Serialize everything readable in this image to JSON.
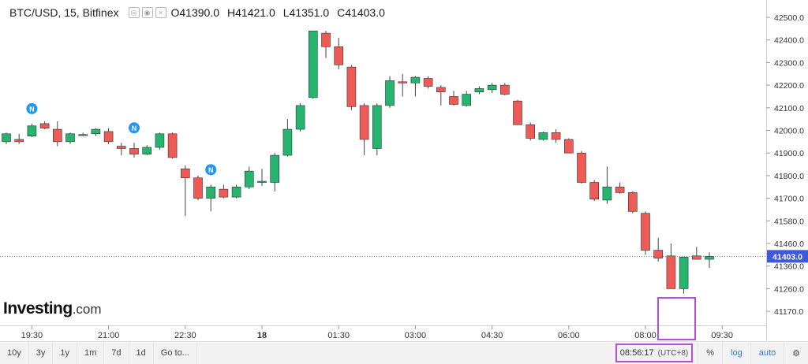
{
  "header": {
    "symbol": "BTC/USD, 15, Bitfinex",
    "ohlc": [
      {
        "k": "O",
        "v": "41390.0"
      },
      {
        "k": "H",
        "v": "41421.0"
      },
      {
        "k": "L",
        "v": "41351.0"
      },
      {
        "k": "C",
        "v": "41403.0"
      }
    ]
  },
  "logo": {
    "main": "Investing",
    "suffix": ".com"
  },
  "toolbar": {
    "ranges": [
      "10y",
      "3y",
      "1y",
      "1m",
      "7d",
      "1d"
    ],
    "goto": "Go to...",
    "clock": "08:56:17",
    "timezone": "(UTC+8)",
    "percent": "%",
    "log": "log",
    "auto": "auto"
  },
  "colors": {
    "up": "#26b56e",
    "down": "#ee5a55",
    "last_price_bg": "#3d5bd9",
    "highlight": "#b44ee0",
    "news_icon": "#2196f3"
  },
  "chart_data": {
    "type": "candlestick",
    "ylim": [
      41100,
      42560
    ],
    "y_ticks": [
      42500,
      42400,
      42300,
      42200,
      42100,
      42000,
      41900,
      41800,
      41700,
      41580,
      41460,
      41360,
      41260,
      41170
    ],
    "y_tick_labels": [
      "42500.0",
      "42400.0",
      "42300.0",
      "42200.0",
      "42100.0",
      "42000.0",
      "41900.0",
      "41800.0",
      "41700.0",
      "41580.0",
      "41460.0",
      "41360.0",
      "41260.0",
      "41170.0"
    ],
    "x_ticks": [
      {
        "i": 2,
        "label": "19:30",
        "bold": false
      },
      {
        "i": 8,
        "label": "21:00",
        "bold": false
      },
      {
        "i": 14,
        "label": "22:30",
        "bold": false
      },
      {
        "i": 20,
        "label": "18",
        "bold": true
      },
      {
        "i": 26,
        "label": "01:30",
        "bold": false
      },
      {
        "i": 32,
        "label": "03:00",
        "bold": false
      },
      {
        "i": 38,
        "label": "04:30",
        "bold": false
      },
      {
        "i": 44,
        "label": "06:00",
        "bold": false
      },
      {
        "i": 50,
        "label": "08:00",
        "bold": false
      },
      {
        "i": 56,
        "label": "09:30",
        "bold": false
      }
    ],
    "last_price": 41403,
    "last_price_label": "41403.0",
    "news_markers": [
      {
        "i": 2,
        "label": "N"
      },
      {
        "i": 10,
        "label": "N"
      },
      {
        "i": 16,
        "label": "N"
      }
    ],
    "candles": [
      {
        "o": 41950,
        "h": 41990,
        "l": 41940,
        "c": 41985
      },
      {
        "o": 41960,
        "h": 41985,
        "l": 41940,
        "c": 41950
      },
      {
        "o": 41975,
        "h": 42030,
        "l": 41970,
        "c": 42020
      },
      {
        "o": 42030,
        "h": 42040,
        "l": 42005,
        "c": 42010
      },
      {
        "o": 42005,
        "h": 42040,
        "l": 41930,
        "c": 41950
      },
      {
        "o": 41950,
        "h": 41990,
        "l": 41940,
        "c": 41985
      },
      {
        "o": 41980,
        "h": 41990,
        "l": 41975,
        "c": 41982
      },
      {
        "o": 41985,
        "h": 42010,
        "l": 41975,
        "c": 42005
      },
      {
        "o": 41995,
        "h": 42010,
        "l": 41940,
        "c": 41950
      },
      {
        "o": 41930,
        "h": 41945,
        "l": 41890,
        "c": 41920
      },
      {
        "o": 41920,
        "h": 41945,
        "l": 41880,
        "c": 41895
      },
      {
        "o": 41895,
        "h": 41935,
        "l": 41890,
        "c": 41925
      },
      {
        "o": 41925,
        "h": 41990,
        "l": 41915,
        "c": 41985
      },
      {
        "o": 41985,
        "h": 41990,
        "l": 41875,
        "c": 41880
      },
      {
        "o": 41830,
        "h": 41845,
        "l": 41605,
        "c": 41790
      },
      {
        "o": 41790,
        "h": 41800,
        "l": 41690,
        "c": 41700
      },
      {
        "o": 41700,
        "h": 41760,
        "l": 41630,
        "c": 41750
      },
      {
        "o": 41740,
        "h": 41760,
        "l": 41700,
        "c": 41705
      },
      {
        "o": 41705,
        "h": 41760,
        "l": 41700,
        "c": 41750
      },
      {
        "o": 41750,
        "h": 41840,
        "l": 41740,
        "c": 41820
      },
      {
        "o": 41770,
        "h": 41830,
        "l": 41755,
        "c": 41775
      },
      {
        "o": 41770,
        "h": 41900,
        "l": 41730,
        "c": 41890
      },
      {
        "o": 41890,
        "h": 42050,
        "l": 41885,
        "c": 42005
      },
      {
        "o": 42005,
        "h": 42120,
        "l": 41995,
        "c": 42110
      },
      {
        "o": 42145,
        "h": 42440,
        "l": 42140,
        "c": 42440
      },
      {
        "o": 42430,
        "h": 42440,
        "l": 42320,
        "c": 42370
      },
      {
        "o": 42370,
        "h": 42410,
        "l": 42270,
        "c": 42290
      },
      {
        "o": 42280,
        "h": 42290,
        "l": 42090,
        "c": 42105
      },
      {
        "o": 42110,
        "h": 42120,
        "l": 41890,
        "c": 41960
      },
      {
        "o": 41920,
        "h": 42120,
        "l": 41890,
        "c": 42110
      },
      {
        "o": 42110,
        "h": 42240,
        "l": 42100,
        "c": 42220
      },
      {
        "o": 42215,
        "h": 42250,
        "l": 42150,
        "c": 42210
      },
      {
        "o": 42210,
        "h": 42240,
        "l": 42150,
        "c": 42235
      },
      {
        "o": 42230,
        "h": 42240,
        "l": 42185,
        "c": 42195
      },
      {
        "o": 42190,
        "h": 42200,
        "l": 42110,
        "c": 42170
      },
      {
        "o": 42150,
        "h": 42175,
        "l": 42110,
        "c": 42115
      },
      {
        "o": 42110,
        "h": 42175,
        "l": 42105,
        "c": 42160
      },
      {
        "o": 42170,
        "h": 42195,
        "l": 42160,
        "c": 42185
      },
      {
        "o": 42180,
        "h": 42210,
        "l": 42165,
        "c": 42200
      },
      {
        "o": 42200,
        "h": 42210,
        "l": 42155,
        "c": 42160
      },
      {
        "o": 42130,
        "h": 42135,
        "l": 42025,
        "c": 42025
      },
      {
        "o": 42025,
        "h": 42035,
        "l": 41955,
        "c": 41965
      },
      {
        "o": 41960,
        "h": 41995,
        "l": 41955,
        "c": 41990
      },
      {
        "o": 41990,
        "h": 42005,
        "l": 41945,
        "c": 41960
      },
      {
        "o": 41960,
        "h": 41965,
        "l": 41900,
        "c": 41900
      },
      {
        "o": 41900,
        "h": 41910,
        "l": 41765,
        "c": 41770
      },
      {
        "o": 41770,
        "h": 41780,
        "l": 41685,
        "c": 41695
      },
      {
        "o": 41690,
        "h": 41840,
        "l": 41670,
        "c": 41750
      },
      {
        "o": 41750,
        "h": 41770,
        "l": 41720,
        "c": 41725
      },
      {
        "o": 41725,
        "h": 41730,
        "l": 41620,
        "c": 41630
      },
      {
        "o": 41620,
        "h": 41630,
        "l": 41410,
        "c": 41430
      },
      {
        "o": 41430,
        "h": 41490,
        "l": 41380,
        "c": 41395
      },
      {
        "o": 41405,
        "h": 41460,
        "l": 41260,
        "c": 41260
      },
      {
        "o": 41260,
        "h": 41400,
        "l": 41240,
        "c": 41400
      },
      {
        "o": 41405,
        "h": 41445,
        "l": 41390,
        "c": 41390
      },
      {
        "o": 41390,
        "h": 41421,
        "l": 41351,
        "c": 41403
      }
    ]
  }
}
